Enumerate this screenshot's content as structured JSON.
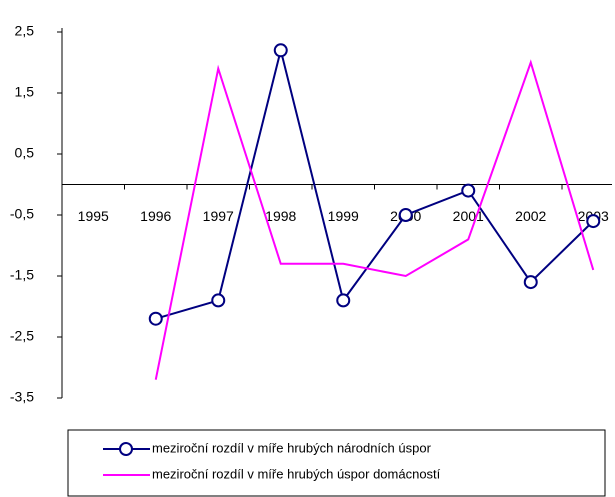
{
  "chart_data": {
    "type": "line",
    "categories": [
      "1995",
      "1996",
      "1997",
      "1998",
      "1999",
      "2000",
      "2001",
      "2002",
      "2003"
    ],
    "series": [
      {
        "name": "meziroční rozdíl v míře hrubých národních úspor",
        "color": "#000080",
        "marker": "circle",
        "values": [
          null,
          -2.2,
          -1.9,
          2.2,
          -1.9,
          -0.5,
          -0.1,
          -1.6,
          -0.6
        ]
      },
      {
        "name": "meziroční rozdíl v míře hrubých úspor domácností",
        "color": "#ff00ff",
        "values": [
          null,
          -3.2,
          1.9,
          -1.3,
          -1.3,
          -1.5,
          -0.9,
          2.0,
          -1.4
        ]
      }
    ],
    "ylim": [
      -3.5,
      2.5
    ],
    "yticks": [
      {
        "value": 2.5,
        "label": "2,5"
      },
      {
        "value": 1.5,
        "label": "1,5"
      },
      {
        "value": 0.5,
        "label": "0,5"
      },
      {
        "value": -0.5,
        "label": "-0,5"
      },
      {
        "value": -1.5,
        "label": "-1,5"
      },
      {
        "value": -2.5,
        "label": "-2,5"
      },
      {
        "value": -3.5,
        "label": "-3,5"
      }
    ],
    "grid": false
  }
}
